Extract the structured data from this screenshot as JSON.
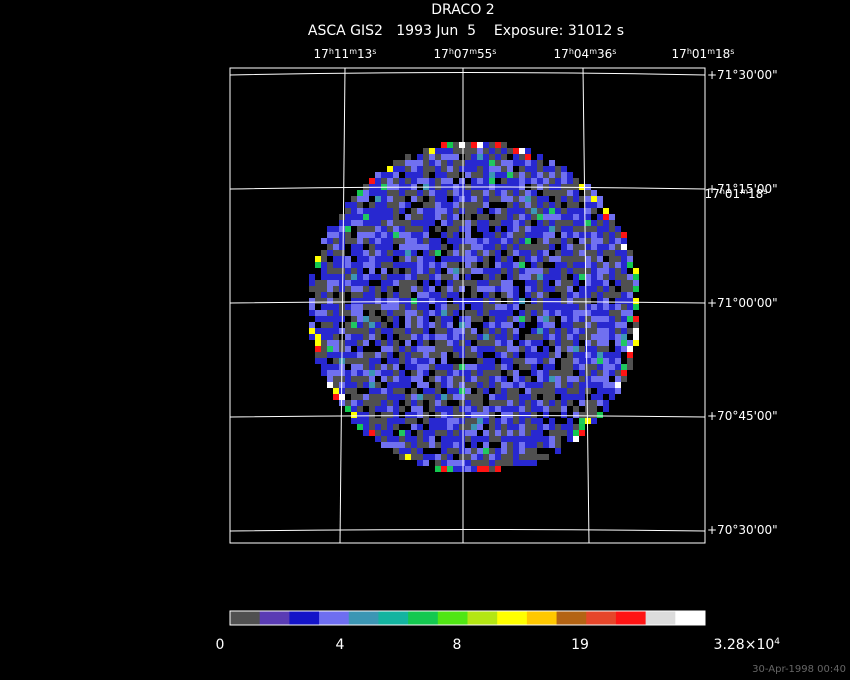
{
  "header": {
    "title": "DRACO 2",
    "subtitle": "ASCA GIS2   1993 Jun  5    Exposure: 31012 s"
  },
  "ra_labels": [
    [
      "17",
      "h",
      "11",
      "m",
      "13",
      "s"
    ],
    [
      "17",
      "h",
      "07",
      "m",
      "55",
      "s"
    ],
    [
      "17",
      "h",
      "04",
      "m",
      "36",
      "s"
    ],
    [
      "17",
      "h",
      "01",
      "m",
      "18",
      "s"
    ]
  ],
  "ra_label_overlap": [
    "17",
    "h",
    "01",
    "m",
    "18",
    "s"
  ],
  "dec_labels": [
    "+71°30'00\"",
    "+71°15'00\"",
    "+71°00'00\"",
    "+70°45'00\"",
    "+70°30'00\""
  ],
  "colorbar": {
    "colors": [
      "#505050",
      "#5a3cb4",
      "#1414c8",
      "#6e6ef0",
      "#3c96b4",
      "#14b4a0",
      "#14c850",
      "#50e614",
      "#b4e614",
      "#ffff00",
      "#ffc800",
      "#b46414",
      "#e6462a",
      "#ff1414",
      "#dcdcdc",
      "#ffffff"
    ],
    "labels": [
      "0",
      "4",
      "8",
      "19"
    ],
    "last_label": {
      "mantissa": "3.28×10",
      "exponent": "4"
    }
  },
  "footer": {
    "timestamp": "30-Apr-1998 00:40"
  }
}
